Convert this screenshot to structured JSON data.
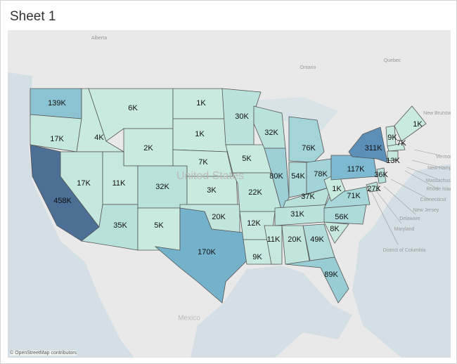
{
  "header": {
    "title": "Sheet 1"
  },
  "map": {
    "basemap_labels": [
      "Alberta",
      "Ontario",
      "Quebec",
      "New Brunswick",
      "United States",
      "Mexico",
      "Vermont",
      "New Hampshire",
      "Massachusetts",
      "Rhode Island",
      "Connecticut",
      "New Jersey",
      "Delaware",
      "Maryland",
      "District of Columbia"
    ],
    "regions": [
      {
        "label": "139K",
        "color": "#8cc3d3"
      },
      {
        "label": "17K",
        "color": "#c4e7de"
      },
      {
        "label": "458K",
        "color": "#4c6f96"
      },
      {
        "label": "4K",
        "color": "#c8eadf"
      },
      {
        "label": "17K",
        "color": "#c4e7de"
      },
      {
        "label": "6K",
        "color": "#c8eadf"
      },
      {
        "label": "2K",
        "color": "#c8eadf"
      },
      {
        "label": "11K",
        "color": "#c6e8de"
      },
      {
        "label": "35K",
        "color": "#b9e1dc"
      },
      {
        "label": "32K",
        "color": "#bae2dc"
      },
      {
        "label": "5K",
        "color": "#c8eadf"
      },
      {
        "label": "1K",
        "color": "#c9eadf"
      },
      {
        "label": "1K",
        "color": "#c9eadf"
      },
      {
        "label": "7K",
        "color": "#c8eadf"
      },
      {
        "label": "3K",
        "color": "#c8eadf"
      },
      {
        "label": "20K",
        "color": "#c2e6dd"
      },
      {
        "label": "170K",
        "color": "#74b1cb"
      },
      {
        "label": "30K",
        "color": "#bbe2dc"
      },
      {
        "label": "5K",
        "color": "#c8eadf"
      },
      {
        "label": "22K",
        "color": "#c1e6dd"
      },
      {
        "label": "12K",
        "color": "#c6e8de"
      },
      {
        "label": "9K",
        "color": "#c7e9df"
      },
      {
        "label": "32K",
        "color": "#bae2dc"
      },
      {
        "label": "80K",
        "color": "#9ccfd6"
      },
      {
        "label": "76K",
        "color": "#a3d4d8"
      },
      {
        "label": "54K",
        "color": "#afdbda"
      },
      {
        "label": "78K",
        "color": "#a1d3d8"
      },
      {
        "label": "37K",
        "color": "#b8e1dc"
      },
      {
        "label": "31K",
        "color": "#bbe2dc"
      },
      {
        "label": "11K",
        "color": "#c6e8de"
      },
      {
        "label": "20K",
        "color": "#c2e6dd"
      },
      {
        "label": "49K",
        "color": "#b1dcda"
      },
      {
        "label": "89K",
        "color": "#98cdd5"
      },
      {
        "label": "8K",
        "color": "#c7e9df"
      },
      {
        "label": "56K",
        "color": "#aedbda"
      },
      {
        "label": "71K",
        "color": "#a7d7d9"
      },
      {
        "label": "1K",
        "color": "#c9eadf"
      },
      {
        "label": "117K",
        "color": "#7db9d0"
      },
      {
        "label": "311K",
        "color": "#5b8fb8"
      },
      {
        "label": "27K",
        "color": "#bde3dc"
      },
      {
        "label": "36K",
        "color": "#b9e1dc"
      },
      {
        "label": "9K",
        "color": "#c7e9df"
      },
      {
        "label": "7K",
        "color": "#c8eadf"
      },
      {
        "label": "1K",
        "color": "#c9eadf"
      },
      {
        "label": "13K",
        "color": "#c5e8de"
      }
    ],
    "attribution": "© OpenStreetMap contributors"
  }
}
